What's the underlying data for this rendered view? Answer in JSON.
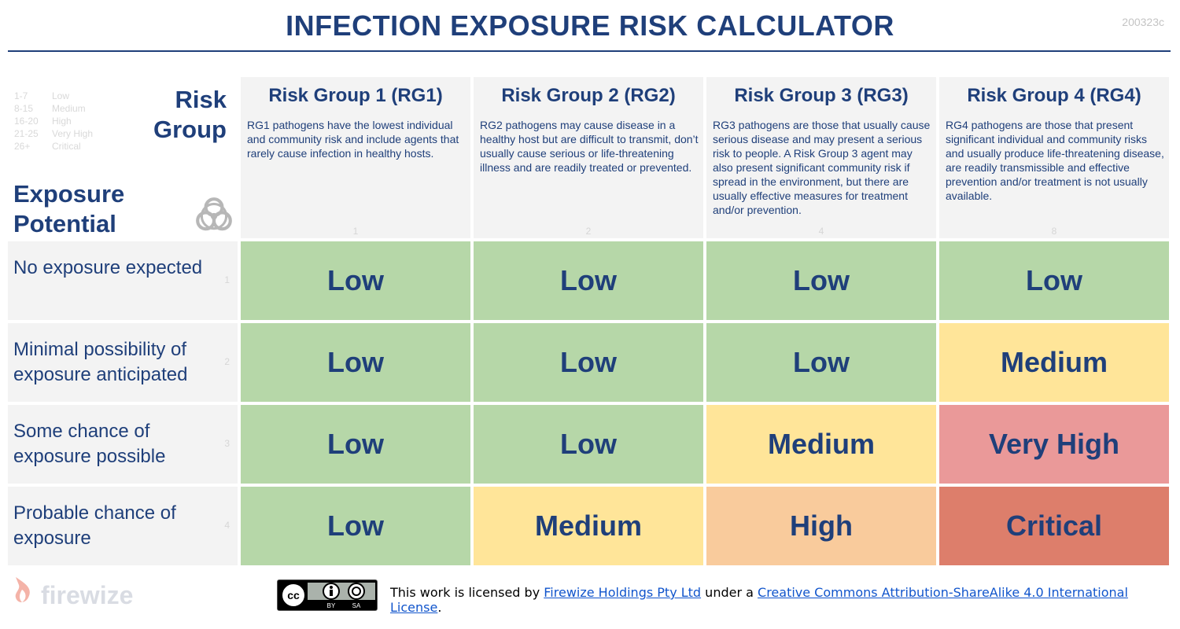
{
  "title": "INFECTION EXPOSURE RISK CALCULATOR",
  "version": "200323c",
  "legend": [
    {
      "range": "1-7",
      "label": "Low"
    },
    {
      "range": "8-15",
      "label": "Medium"
    },
    {
      "range": "16-20",
      "label": "High"
    },
    {
      "range": "21-25",
      "label": "Very High"
    },
    {
      "range": "26+",
      "label": "Critical"
    }
  ],
  "axis": {
    "risk_group_line1": "Risk",
    "risk_group_line2": "Group",
    "exposure_line1": "Exposure",
    "exposure_line2": "Potential"
  },
  "columns": [
    {
      "title": "Risk Group 1 (RG1)",
      "desc": "RG1 pathogens have the lowest individual and community risk and include agents that rarely cause infection in healthy hosts.",
      "weight": "1"
    },
    {
      "title": "Risk Group 2 (RG2)",
      "desc": "RG2 pathogens may cause disease in a healthy host but are difficult to transmit, don’t usually cause serious or life-threatening illness and are readily treated or prevented.",
      "weight": "2"
    },
    {
      "title": "Risk Group 3 (RG3)",
      "desc": "RG3 pathogens are those that usually cause serious disease and may present a serious risk to people.  A Risk Group 3 agent may also present significant community risk if spread in the environment, but there are usually effective measures for treatment and/or prevention.",
      "weight": "4"
    },
    {
      "title": "Risk Group 4 (RG4)",
      "desc": "RG4 pathogens are those that present significant individual and community risks and usually produce life-threatening disease, are readily transmissible and effective prevention and/or treatment is not usually available.",
      "weight": "8"
    }
  ],
  "rows": [
    {
      "label": "No exposure expected",
      "weight": "1",
      "cells": [
        "Low",
        "Low",
        "Low",
        "Low"
      ]
    },
    {
      "label": "Minimal possibility of exposure anticipated",
      "weight": "2",
      "cells": [
        "Low",
        "Low",
        "Low",
        "Medium"
      ]
    },
    {
      "label": "Some chance of exposure possible",
      "weight": "3",
      "cells": [
        "Low",
        "Low",
        "Medium",
        "Very High"
      ]
    },
    {
      "label": "Probable chance of exposure",
      "weight": "4",
      "cells": [
        "Low",
        "Medium",
        "High",
        "Critical"
      ]
    }
  ],
  "level_colors": {
    "Low": "#b6d7a8",
    "Medium": "#ffe599",
    "High": "#f9cb9c",
    "Very High": "#ea9999",
    "Critical": "#dd7e6b"
  },
  "footer": {
    "logo_text": "firewize",
    "cc_by": "BY",
    "cc_sa": "SA",
    "license_prefix": "This work is licensed by ",
    "license_holder": "Firewize Holdings Pty Ltd",
    "license_middle": " under a ",
    "license_name": "Creative Commons Attribution-ShareAlike 4.0 International License",
    "license_suffix": "."
  }
}
